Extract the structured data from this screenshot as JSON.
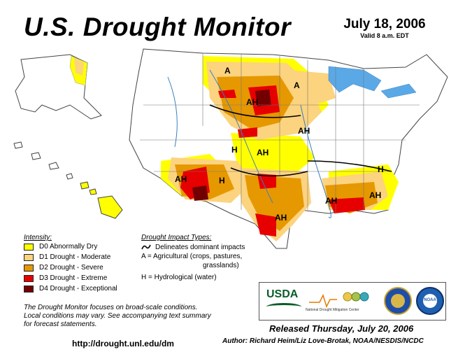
{
  "header": {
    "title": "U.S. Drought Monitor",
    "date": "July 18, 2006",
    "valid": "Valid 8 a.m. EDT"
  },
  "legend": {
    "intensity_title": "Intensity:",
    "items": [
      {
        "label": "D0 Abnormally Dry",
        "color": "#ffff00"
      },
      {
        "label": "D1 Drought - Moderate",
        "color": "#fcd37f"
      },
      {
        "label": "D2 Drought - Severe",
        "color": "#e69800"
      },
      {
        "label": "D3 Drought - Extreme",
        "color": "#e60000"
      },
      {
        "label": "D4 Drought - Exceptional",
        "color": "#730000"
      }
    ],
    "impact_title": "Drought Impact Types:",
    "impact_line": "Delineates dominant impacts",
    "impact_a_1": "A = Agricultural (crops, pastures,",
    "impact_a_2": "grasslands)",
    "impact_h": "H = Hydrological (water)"
  },
  "map": {
    "labels": [
      {
        "text": "A"
      },
      {
        "text": "A"
      },
      {
        "text": "AH"
      },
      {
        "text": "AH"
      },
      {
        "text": "H"
      },
      {
        "text": "AH"
      },
      {
        "text": "AH"
      },
      {
        "text": "H"
      },
      {
        "text": "AH"
      },
      {
        "text": "AH"
      },
      {
        "text": "AH"
      },
      {
        "text": "H"
      }
    ]
  },
  "footer": {
    "disclaimer_1": "The Drought Monitor focuses on broad-scale conditions.",
    "disclaimer_2": "Local conditions may vary. See accompanying text summary",
    "disclaimer_3": "for forecast statements.",
    "url": "http://drought.unl.edu/dm",
    "released": "Released Thursday, July 20, 2006",
    "author": "Author: Richard Heim/Liz Love-Brotak, NOAA/NESDIS/NCDC"
  },
  "logos": {
    "usda": "USDA",
    "ndmc": "National Drought Mitigation Center",
    "noaa": "NOAA"
  }
}
